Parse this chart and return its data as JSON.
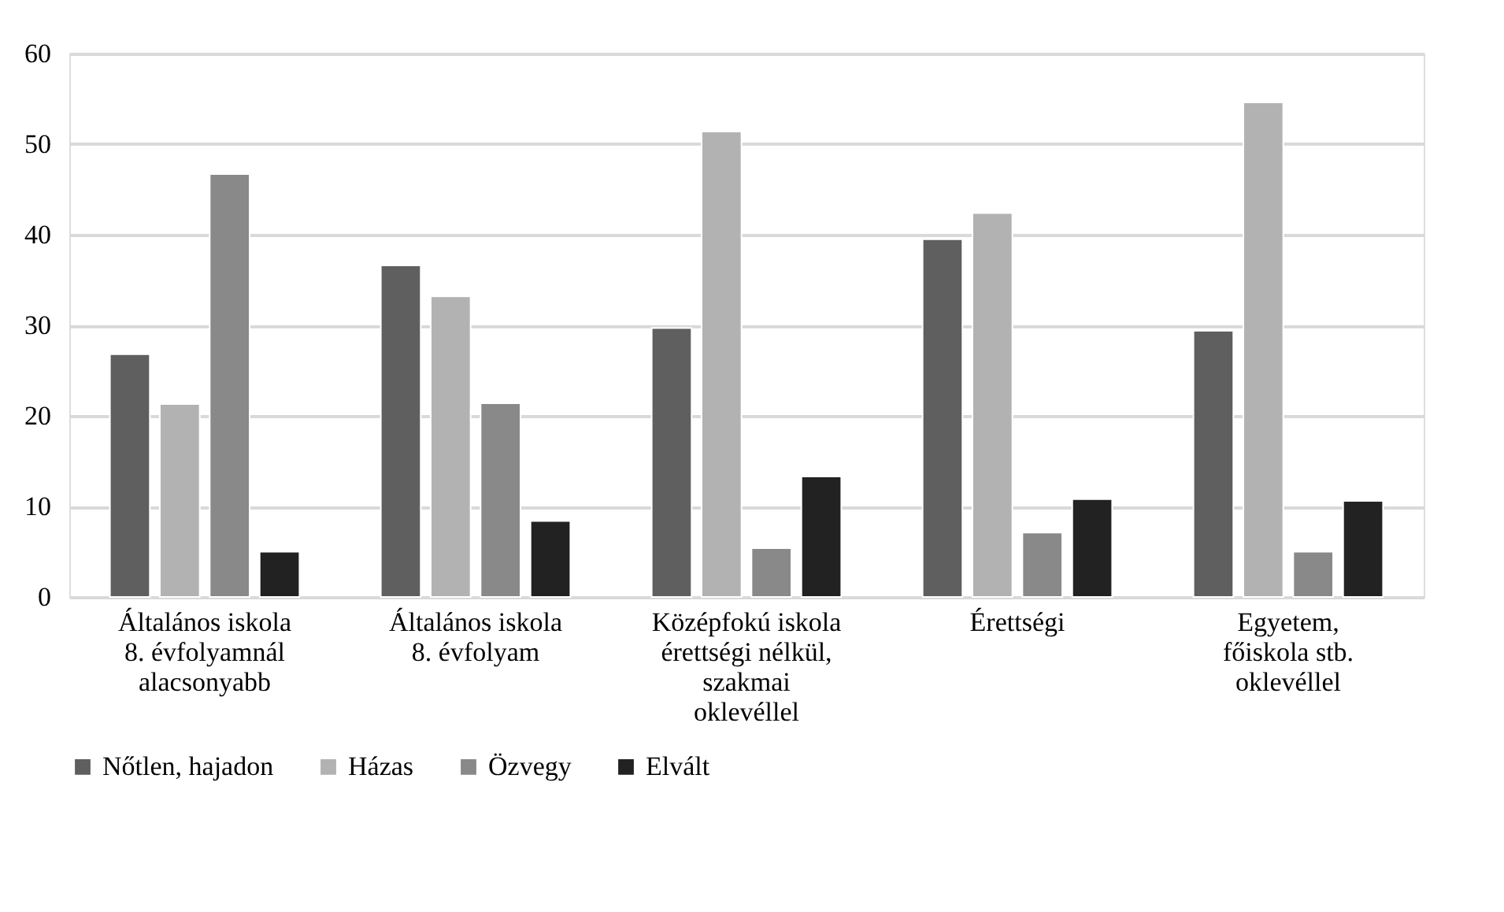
{
  "chart_data": {
    "type": "bar",
    "categories": [
      "Általános iskola\n8. évfolyamnál\nalacsonyabb",
      "Általános iskola\n8. évfolyam",
      "Középfokú iskola\nérettségi nélkül,\nszakmai\noklevéllel",
      "Érettségi",
      "Egyetem,\nfőiskola stb.\noklevéllel"
    ],
    "series": [
      {
        "name": "Nőtlen, hajadon",
        "color": "#5f5f5f",
        "values": [
          26.8,
          36.6,
          29.7,
          39.5,
          29.4
        ]
      },
      {
        "name": "Házas",
        "color": "#b2b2b2",
        "values": [
          21.3,
          33.2,
          51.4,
          42.4,
          54.6
        ]
      },
      {
        "name": "Özvegy",
        "color": "#898989",
        "values": [
          46.7,
          21.4,
          5.4,
          7.1,
          5.0
        ]
      },
      {
        "name": "Elvált",
        "color": "#222222",
        "values": [
          5.0,
          8.4,
          13.3,
          10.8,
          10.6
        ]
      }
    ],
    "ylim": [
      0,
      60
    ],
    "yticks": [
      0,
      10,
      20,
      30,
      40,
      50,
      60
    ],
    "grid": "y",
    "legend": "bottom"
  }
}
